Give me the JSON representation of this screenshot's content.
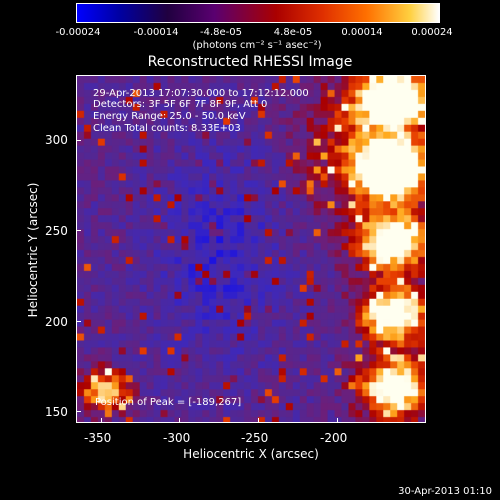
{
  "colorbar": {
    "labels": [
      "-0.00024",
      "-0.00014",
      "-4.8e-05",
      "4.8e-05",
      "0.00014",
      "0.00024"
    ],
    "unit": "(photons cm⁻² s⁻¹ asec⁻²)",
    "colors": [
      "#0000ff",
      "#200040",
      "#5a0070",
      "#aa0000",
      "#ff7000",
      "#ffffff"
    ]
  },
  "title": "Reconstructed RHESSI Image",
  "info": {
    "time_range": "29-Apr-2013 17:07:30.000 to 17:12:12.000",
    "detectors": "Detectors: 3F 5F 6F 7F 8F 9F, Att 0",
    "energy_range": "Energy Range: 25.0 - 50.0 keV",
    "clean": "Clean    Total counts: 8.33E+03",
    "peak": "Position of Peak = [-189,267]"
  },
  "axes": {
    "xlabel": "Heliocentric X (arcsec)",
    "ylabel": "Heliocentric Y (arcsec)",
    "xticks": [
      "-350",
      "-300",
      "-250",
      "-200"
    ],
    "yticks": [
      "300",
      "250",
      "200",
      "150"
    ]
  },
  "timestamp": "30-Apr-2013 01:10"
}
